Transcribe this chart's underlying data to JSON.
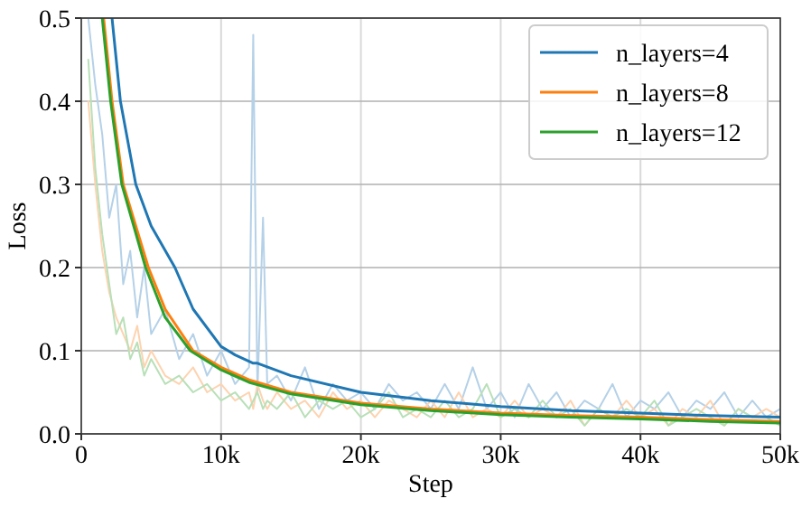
{
  "chart_data": {
    "type": "line",
    "xlabel": "Step",
    "ylabel": "Loss",
    "xlim": [
      0,
      50000
    ],
    "ylim": [
      0,
      0.5
    ],
    "xticks": [
      0,
      {
        "value": 10000,
        "label": "10k"
      },
      {
        "value": 20000,
        "label": "20k"
      },
      {
        "value": 30000,
        "label": "30k"
      },
      {
        "value": 40000,
        "label": "40k"
      },
      {
        "value": 50000,
        "label": "50k"
      }
    ],
    "yticks": [
      {
        "value": 0,
        "label": "0.0"
      },
      {
        "value": 0.1,
        "label": "0.1"
      },
      {
        "value": 0.2,
        "label": "0.2"
      },
      {
        "value": 0.3,
        "label": "0.3"
      },
      {
        "value": 0.4,
        "label": "0.4"
      },
      {
        "value": 0.5,
        "label": "0.5"
      }
    ],
    "grid": true,
    "legend": "top right",
    "line_style": "solid",
    "series": [
      {
        "color": "#b5d1e8",
        "x": [
          500,
          1000,
          1500,
          2000,
          2500,
          3000,
          3500,
          4000,
          4500,
          5000,
          6000,
          7000,
          8000,
          9000,
          10000,
          11000,
          12000,
          12300,
          12600,
          13000,
          13300,
          14000,
          15000,
          16000,
          17000,
          18000,
          19000,
          20000,
          21000,
          22000,
          23000,
          24000,
          25000,
          26000,
          27000,
          28000,
          29000,
          30000,
          31000,
          32000,
          33000,
          34000,
          35000,
          36000,
          37000,
          38000,
          39000,
          40000,
          41000,
          42000,
          43000,
          44000,
          45000,
          46000,
          47000,
          48000,
          49000,
          50000
        ],
        "values": [
          0.5,
          0.42,
          0.36,
          0.26,
          0.3,
          0.18,
          0.22,
          0.14,
          0.2,
          0.12,
          0.15,
          0.09,
          0.12,
          0.07,
          0.1,
          0.06,
          0.08,
          0.48,
          0.05,
          0.26,
          0.06,
          0.07,
          0.04,
          0.08,
          0.03,
          0.06,
          0.04,
          0.05,
          0.03,
          0.06,
          0.04,
          0.05,
          0.03,
          0.06,
          0.03,
          0.08,
          0.03,
          0.05,
          0.02,
          0.06,
          0.03,
          0.05,
          0.02,
          0.04,
          0.03,
          0.06,
          0.02,
          0.04,
          0.03,
          0.05,
          0.02,
          0.04,
          0.03,
          0.05,
          0.02,
          0.04,
          0.02,
          0.03
        ]
      },
      {
        "color": "#fdd3b0",
        "x": [
          500,
          1000,
          1500,
          2000,
          2500,
          3000,
          3500,
          4000,
          4500,
          5000,
          6000,
          7000,
          8000,
          9000,
          10000,
          11000,
          12000,
          12300,
          12600,
          13000,
          13300,
          14000,
          15000,
          16000,
          17000,
          18000,
          19000,
          20000,
          21000,
          22000,
          23000,
          24000,
          25000,
          26000,
          27000,
          28000,
          29000,
          30000,
          31000,
          32000,
          33000,
          34000,
          35000,
          36000,
          37000,
          38000,
          39000,
          40000,
          41000,
          42000,
          43000,
          44000,
          45000,
          46000,
          47000,
          48000,
          49000,
          50000
        ],
        "values": [
          0.4,
          0.3,
          0.22,
          0.17,
          0.14,
          0.12,
          0.1,
          0.13,
          0.08,
          0.1,
          0.07,
          0.06,
          0.08,
          0.05,
          0.06,
          0.04,
          0.05,
          0.03,
          0.06,
          0.04,
          0.03,
          0.05,
          0.03,
          0.04,
          0.02,
          0.05,
          0.03,
          0.04,
          0.02,
          0.04,
          0.03,
          0.02,
          0.04,
          0.02,
          0.05,
          0.02,
          0.03,
          0.02,
          0.04,
          0.02,
          0.03,
          0.02,
          0.04,
          0.01,
          0.03,
          0.02,
          0.04,
          0.02,
          0.03,
          0.01,
          0.03,
          0.02,
          0.04,
          0.01,
          0.03,
          0.02,
          0.03,
          0.02
        ]
      },
      {
        "color": "#b8e0b8",
        "x": [
          500,
          1000,
          1500,
          2000,
          2500,
          3000,
          3500,
          4000,
          4500,
          5000,
          6000,
          7000,
          8000,
          9000,
          10000,
          11000,
          12000,
          12300,
          12600,
          13000,
          13300,
          14000,
          15000,
          16000,
          17000,
          18000,
          19000,
          20000,
          21000,
          22000,
          23000,
          24000,
          25000,
          26000,
          27000,
          28000,
          29000,
          30000,
          31000,
          32000,
          33000,
          34000,
          35000,
          36000,
          37000,
          38000,
          39000,
          40000,
          41000,
          42000,
          43000,
          44000,
          45000,
          46000,
          47000,
          48000,
          49000,
          50000
        ],
        "values": [
          0.45,
          0.32,
          0.24,
          0.18,
          0.12,
          0.14,
          0.09,
          0.11,
          0.07,
          0.09,
          0.06,
          0.07,
          0.05,
          0.06,
          0.04,
          0.05,
          0.03,
          0.04,
          0.05,
          0.03,
          0.04,
          0.03,
          0.05,
          0.02,
          0.04,
          0.03,
          0.04,
          0.02,
          0.03,
          0.05,
          0.02,
          0.03,
          0.02,
          0.04,
          0.02,
          0.03,
          0.06,
          0.02,
          0.03,
          0.02,
          0.04,
          0.02,
          0.03,
          0.01,
          0.03,
          0.02,
          0.03,
          0.02,
          0.04,
          0.01,
          0.02,
          0.03,
          0.02,
          0.01,
          0.03,
          0.02,
          0.02,
          0.01
        ]
      },
      {
        "name": "n_layers=4",
        "color": "#1f77b4",
        "x": [
          2200,
          2800,
          3900,
          5000,
          6700,
          8000,
          10000,
          11000,
          12300,
          12600,
          15000,
          20000,
          25000,
          30000,
          35000,
          40000,
          45000,
          50000
        ],
        "values": [
          0.5,
          0.4,
          0.3,
          0.25,
          0.2,
          0.15,
          0.105,
          0.095,
          0.085,
          0.085,
          0.07,
          0.05,
          0.04,
          0.033,
          0.028,
          0.025,
          0.022,
          0.02
        ]
      },
      {
        "name": "n_layers=8",
        "color": "#ff7f0e",
        "x": [
          1600,
          2200,
          3000,
          4800,
          6000,
          8000,
          10000,
          12000,
          15000,
          20000,
          25000,
          30000,
          35000,
          40000,
          45000,
          50000
        ],
        "values": [
          0.5,
          0.4,
          0.3,
          0.2,
          0.15,
          0.1,
          0.08,
          0.065,
          0.05,
          0.037,
          0.03,
          0.025,
          0.022,
          0.02,
          0.017,
          0.015
        ]
      },
      {
        "name": "n_layers=12",
        "color": "#2ca02c",
        "x": [
          1500,
          2100,
          2900,
          4600,
          6000,
          7800,
          10000,
          12000,
          15000,
          20000,
          25000,
          30000,
          35000,
          40000,
          45000,
          50000
        ],
        "values": [
          0.5,
          0.4,
          0.3,
          0.2,
          0.14,
          0.1,
          0.077,
          0.062,
          0.048,
          0.035,
          0.028,
          0.023,
          0.02,
          0.018,
          0.015,
          0.013
        ]
      }
    ]
  }
}
